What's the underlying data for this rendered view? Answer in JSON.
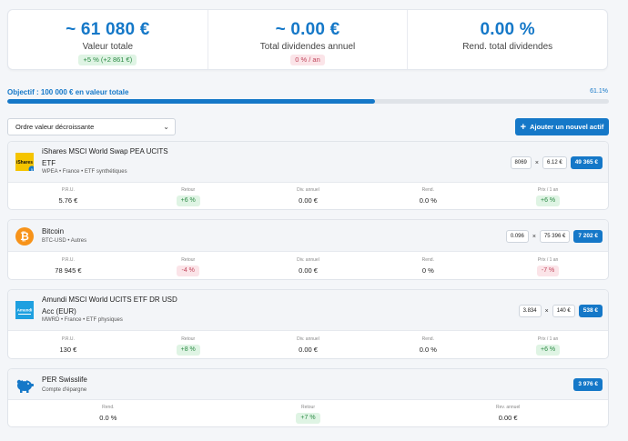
{
  "summary": {
    "value": {
      "amount": "~ 61 080 €",
      "label": "Valeur totale",
      "badge": "+5 % (+2 861 €)",
      "badge_color": "#2c8a45"
    },
    "dividends": {
      "amount": "~ 0.00 €",
      "label": "Total dividendes annuel",
      "badge": "0 % / an",
      "badge_color": "#c0465c"
    },
    "yield": {
      "amount": "0.00 %",
      "label": "Rend. total dividendes"
    }
  },
  "goal": {
    "label": "Objectif : 100 000 € en valeur totale",
    "percent_text": "61.1%",
    "progress": 0.611
  },
  "sort": {
    "selected": "Ordre valeur décroissante"
  },
  "add_button": {
    "label": "Ajouter un nouvel actif"
  },
  "colors": {
    "accent": "#1578c8",
    "positive": "#2c8a45",
    "negative": "#c0465c"
  },
  "assets": [
    {
      "name_line1": "iShares MSCI World Swap PEA UCITS",
      "name_line2": "ETF",
      "sub": "WPEA • France • ETF synthétiques",
      "logo_text": "iShares",
      "badge": "5",
      "quantity": "8069",
      "price": "6.12 €",
      "total": "49 365 €",
      "stats": [
        {
          "label": "P.R.U.",
          "value": "5.76 €"
        },
        {
          "label": "Retour",
          "value": "+6 %",
          "tone": "green"
        },
        {
          "label": "Div. annuel",
          "value": "0.00 €"
        },
        {
          "label": "Rend.",
          "value": "0.0 %"
        },
        {
          "label": "Prix / 1 an",
          "value": "+6 %",
          "tone": "green"
        }
      ]
    },
    {
      "name_line1": "Bitcoin",
      "sub": "BTC-USD • Autres",
      "quantity": "0.096",
      "price": "75 396 €",
      "total": "7 202 €",
      "stats": [
        {
          "label": "P.R.U.",
          "value": "78 945 €"
        },
        {
          "label": "Retour",
          "value": "-4 %",
          "tone": "red"
        },
        {
          "label": "Div. annuel",
          "value": "0.00 €"
        },
        {
          "label": "Rend.",
          "value": "0 %"
        },
        {
          "label": "Prix / 1 an",
          "value": "-7 %",
          "tone": "red"
        }
      ]
    },
    {
      "name_line1": "Amundi MSCI World UCITS ETF DR USD",
      "name_line2": "Acc (EUR)",
      "sub": "MWRD • France • ETF physiques",
      "logo_text": "Amundi",
      "quantity": "3.834",
      "price": "140 €",
      "total": "538 €",
      "stats": [
        {
          "label": "P.R.U.",
          "value": "130 €"
        },
        {
          "label": "Retour",
          "value": "+8 %",
          "tone": "green"
        },
        {
          "label": "Div. annuel",
          "value": "0.00 €"
        },
        {
          "label": "Rend.",
          "value": "0.0 %"
        },
        {
          "label": "Prix / 1 an",
          "value": "+6 %",
          "tone": "green"
        }
      ]
    },
    {
      "name_line1": "PER Swisslife",
      "sub": "Compte d'épargne",
      "total": "3 976 €",
      "stats": [
        {
          "label": "Rend.",
          "value": "0.0 %"
        },
        {
          "label": "Retour",
          "value": "+7 %",
          "tone": "green"
        },
        {
          "label": "Rev. annuel",
          "value": "0.00 €"
        }
      ]
    }
  ]
}
